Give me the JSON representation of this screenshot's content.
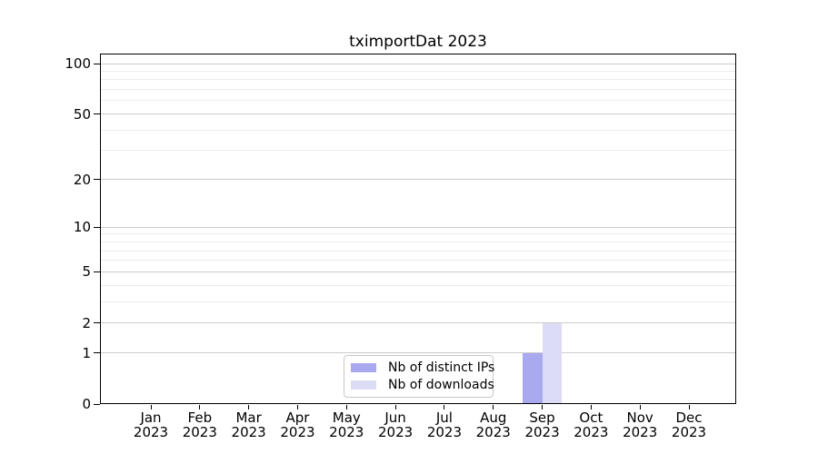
{
  "window": {
    "background": "#ffffff"
  },
  "chart_data": {
    "type": "bar",
    "title": "tximportDat 2023",
    "categories": [
      "Jan",
      "Feb",
      "Mar",
      "Apr",
      "May",
      "Jun",
      "Jul",
      "Aug",
      "Sep",
      "Oct",
      "Nov",
      "Dec"
    ],
    "year": "2023",
    "series": [
      {
        "name": "Nb of distinct IPs",
        "color": "#a9a9f0",
        "values": [
          0,
          0,
          0,
          0,
          0,
          0,
          0,
          0,
          1,
          0,
          0,
          0
        ]
      },
      {
        "name": "Nb of downloads",
        "color": "#dcdcf6",
        "values": [
          0,
          0,
          0,
          0,
          0,
          0,
          0,
          0,
          2,
          0,
          0,
          0
        ]
      }
    ],
    "y_axis": {
      "scale": "log10(1+y)",
      "ticks": [
        0,
        1,
        2,
        5,
        10,
        20,
        50,
        100
      ],
      "minor_gridlines": [
        3,
        4,
        6,
        7,
        8,
        9,
        30,
        40,
        60,
        70,
        80,
        90
      ],
      "max_tick": 100
    },
    "xlabel": "",
    "ylabel": "",
    "grid": "horizontal",
    "legend_position": "bottom-center-inside",
    "colors": {
      "frame": "#000000",
      "major_grid": "#cccccc",
      "minor_grid": "#ebebeb",
      "text": "#000000",
      "legend_border": "#c8c8c8"
    }
  }
}
